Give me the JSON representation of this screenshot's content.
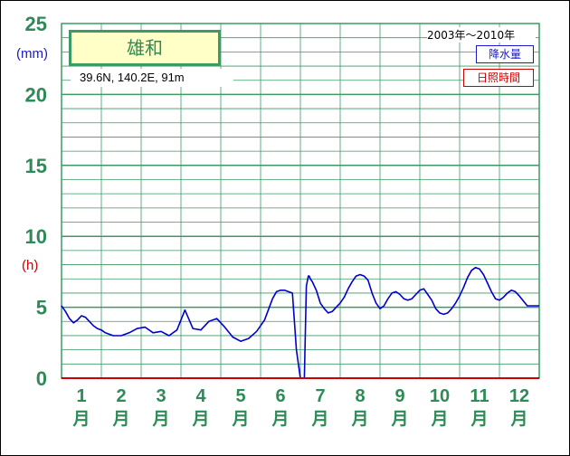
{
  "chart_data": {
    "type": "line",
    "station": "雄和",
    "location": "39.6N,  140.2E,  91m",
    "period": "2003年〜2010年",
    "y_left_unit": "(mm)",
    "y_right_unit": "(h)",
    "ylim": [
      0,
      25
    ],
    "y_ticks": [
      "0",
      "5",
      "10",
      "15",
      "20",
      "25"
    ],
    "months": [
      "1",
      "2",
      "3",
      "4",
      "5",
      "6",
      "7",
      "8",
      "9",
      "10",
      "11",
      "12"
    ],
    "month_suffix": "月",
    "xlim": [
      0.5,
      12.5
    ],
    "grid": true,
    "series": [
      {
        "name": "降水量",
        "color": "#0000cc",
        "x": [
          0.5,
          0.6,
          0.7,
          0.8,
          0.9,
          1.0,
          1.1,
          1.2,
          1.3,
          1.4,
          1.5,
          1.6,
          1.7,
          1.8,
          1.9,
          2.0,
          2.2,
          2.4,
          2.6,
          2.8,
          3.0,
          3.2,
          3.4,
          3.6,
          3.8,
          4.0,
          4.2,
          4.4,
          4.6,
          4.8,
          5.0,
          5.2,
          5.4,
          5.6,
          5.8,
          5.9,
          6.0,
          6.1,
          6.2,
          6.3,
          6.4,
          6.5,
          6.55,
          6.6,
          6.65,
          6.7,
          6.72,
          6.75,
          6.8,
          6.9,
          7.0,
          7.1,
          7.2,
          7.3,
          7.4,
          7.5,
          7.6,
          7.7,
          7.8,
          7.9,
          8.0,
          8.1,
          8.2,
          8.3,
          8.4,
          8.5,
          8.6,
          8.7,
          8.8,
          8.9,
          9.0,
          9.1,
          9.2,
          9.3,
          9.4,
          9.5,
          9.6,
          9.7,
          9.8,
          9.9,
          10.0,
          10.1,
          10.2,
          10.3,
          10.4,
          10.5,
          10.6,
          10.7,
          10.8,
          10.9,
          11.0,
          11.1,
          11.2,
          11.3,
          11.4,
          11.5,
          11.6,
          11.7,
          11.8,
          11.9,
          12.0,
          12.2,
          12.5
        ],
        "y": [
          5.1,
          4.7,
          4.2,
          3.9,
          4.1,
          4.4,
          4.3,
          4.0,
          3.7,
          3.5,
          3.4,
          3.2,
          3.1,
          3.0,
          3.0,
          3.0,
          3.2,
          3.5,
          3.6,
          3.2,
          3.3,
          3.0,
          3.4,
          4.8,
          3.5,
          3.4,
          4.0,
          4.2,
          3.6,
          2.9,
          2.6,
          2.8,
          3.3,
          4.1,
          5.6,
          6.1,
          6.2,
          6.2,
          6.1,
          6.0,
          2.0,
          0.0,
          0.0,
          0.0,
          6.5,
          7.2,
          7.2,
          7.0,
          6.8,
          6.2,
          5.3,
          4.9,
          4.6,
          4.7,
          5.0,
          5.3,
          5.7,
          6.3,
          6.8,
          7.2,
          7.3,
          7.2,
          6.9,
          6.0,
          5.3,
          4.9,
          5.1,
          5.6,
          6.0,
          6.1,
          5.9,
          5.6,
          5.5,
          5.6,
          5.9,
          6.2,
          6.3,
          5.9,
          5.5,
          4.9,
          4.6,
          4.5,
          4.6,
          4.9,
          5.3,
          5.8,
          6.4,
          7.1,
          7.6,
          7.8,
          7.7,
          7.3,
          6.7,
          6.1,
          5.6,
          5.5,
          5.7,
          6.0,
          6.2,
          6.1,
          5.8,
          5.1,
          5.1
        ]
      },
      {
        "name": "日照時間",
        "color": "#cc0000",
        "x": [
          0.5,
          12.5
        ],
        "y": [
          0,
          0
        ]
      }
    ]
  }
}
